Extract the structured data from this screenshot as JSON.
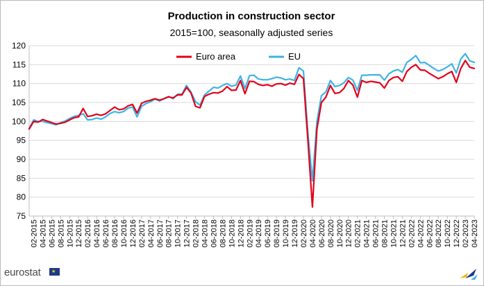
{
  "chart_data": {
    "type": "line",
    "title": "Production in construction sector",
    "subtitle": "2015=100, seasonally adjusted series",
    "ylim": [
      75,
      120
    ],
    "yticks": [
      75,
      80,
      85,
      90,
      95,
      100,
      105,
      110,
      115,
      120
    ],
    "xtick_labels": [
      "02-2015",
      "04-2015",
      "06-2015",
      "08-2015",
      "10-2015",
      "12-2015",
      "02-2016",
      "04-2016",
      "06-2016",
      "08-2016",
      "10-2016",
      "12-2016",
      "02-2017",
      "04-2017",
      "06-2017",
      "08-2017",
      "10-2017",
      "12-2017",
      "02-2018",
      "04-2018",
      "06-2018",
      "08-2018",
      "10-2018",
      "12-2018",
      "02-2019",
      "04-2019",
      "06-2019",
      "08-2019",
      "10-2019",
      "12-2019",
      "02-2020",
      "04-2020",
      "06-2020",
      "08-2020",
      "10-2020",
      "12-2020",
      "02-2021",
      "04-2021",
      "06-2021",
      "08-2021",
      "10-2021",
      "12-2021",
      "02-2022",
      "04-2022",
      "06-2022",
      "08-2022",
      "10-2022",
      "12-2022",
      "02-2023",
      "04-2023"
    ],
    "x_start": "01-2015",
    "grid": true,
    "legend_position": "top-left",
    "series": [
      {
        "name": "Euro area",
        "color": "#e2001a",
        "values": [
          98.0,
          100.0,
          99.8,
          100.5,
          100.1,
          99.7,
          99.3,
          99.5,
          99.8,
          100.4,
          101.0,
          101.2,
          103.4,
          101.3,
          101.5,
          101.9,
          101.6,
          102.0,
          102.9,
          103.8,
          103.1,
          103.3,
          104.1,
          104.5,
          102.2,
          104.8,
          105.3,
          105.6,
          106.0,
          105.6,
          106.0,
          106.5,
          106.2,
          107.0,
          107.0,
          109.0,
          107.5,
          104.0,
          103.6,
          106.6,
          107.2,
          107.6,
          107.5,
          108.0,
          109.2,
          108.2,
          108.3,
          110.8,
          107.3,
          110.6,
          110.5,
          109.8,
          109.5,
          109.7,
          109.3,
          109.9,
          110.0,
          109.6,
          110.1,
          109.8,
          112.4,
          111.3,
          95.0,
          77.4,
          98.0,
          105.0,
          106.4,
          109.5,
          107.4,
          107.6,
          108.7,
          110.8,
          109.6,
          106.4,
          110.8,
          110.3,
          110.6,
          110.4,
          110.2,
          108.8,
          110.8,
          111.6,
          111.8,
          110.6,
          113.2,
          114.3,
          115.0,
          113.6,
          113.5,
          112.7,
          112.0,
          111.3,
          111.8,
          112.6,
          113.2,
          110.3,
          114.0,
          116.1,
          114.3,
          114.0
        ]
      },
      {
        "name": "EU",
        "color": "#3cb4e5",
        "values": [
          98.2,
          100.4,
          100.0,
          100.0,
          99.7,
          99.4,
          99.1,
          99.7,
          100.1,
          100.8,
          101.3,
          101.6,
          102.0,
          100.4,
          100.5,
          100.9,
          100.6,
          101.2,
          102.1,
          102.6,
          102.3,
          102.6,
          103.5,
          103.8,
          101.2,
          104.0,
          104.7,
          105.2,
          105.9,
          105.4,
          106.0,
          106.6,
          106.0,
          107.2,
          107.2,
          109.5,
          107.7,
          105.2,
          104.3,
          107.0,
          108.0,
          109.0,
          108.8,
          109.5,
          110.0,
          109.3,
          109.6,
          112.0,
          108.7,
          112.1,
          112.2,
          111.2,
          111.0,
          111.0,
          111.3,
          111.7,
          111.5,
          111.0,
          111.2,
          110.8,
          114.2,
          113.3,
          97.0,
          84.3,
          100.0,
          106.8,
          107.8,
          110.8,
          109.2,
          109.5,
          110.2,
          111.6,
          110.9,
          108.2,
          112.2,
          112.2,
          112.3,
          112.3,
          112.3,
          110.9,
          112.6,
          113.3,
          113.7,
          113.0,
          115.6,
          116.4,
          117.4,
          115.5,
          115.6,
          114.8,
          114.0,
          113.3,
          113.7,
          114.4,
          115.2,
          112.8,
          116.5,
          117.9,
          116.0,
          115.6
        ]
      }
    ]
  },
  "branding": {
    "logo_text": "eurostat",
    "flag_stars": "★"
  }
}
